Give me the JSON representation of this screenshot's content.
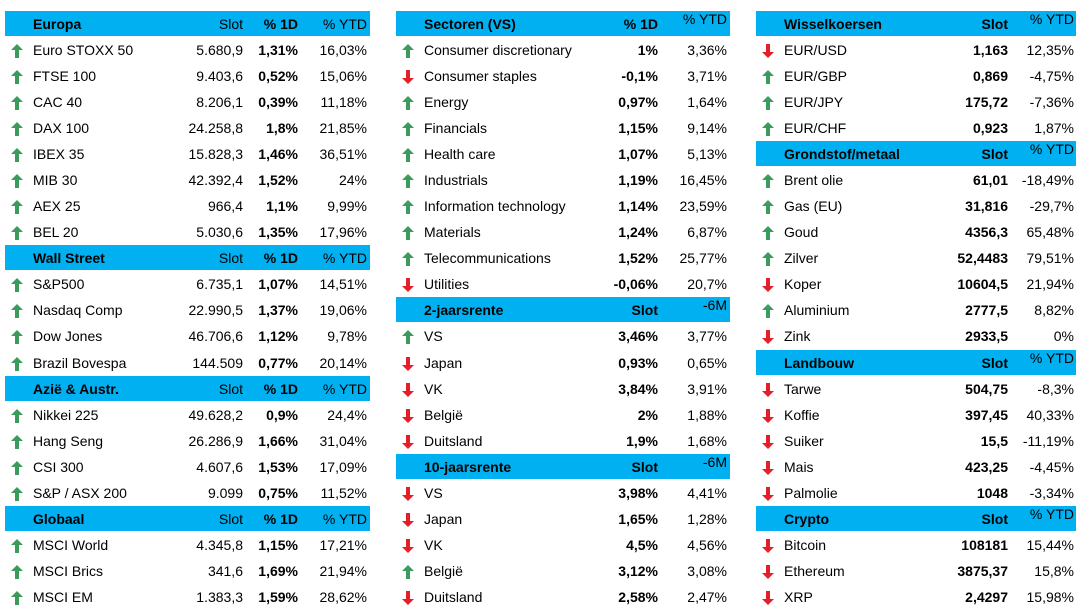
{
  "columns": [
    {
      "sections": [
        {
          "title": "Europa",
          "headers": [
            "Slot",
            "% 1D",
            "% YTD"
          ],
          "rows": [
            {
              "arrow": "up",
              "cells": [
                "Euro STOXX 50",
                "5.680,9",
                "1,31%",
                "16,03%"
              ]
            },
            {
              "arrow": "up",
              "cells": [
                "FTSE 100",
                "9.403,6",
                "0,52%",
                "15,06%"
              ]
            },
            {
              "arrow": "up",
              "cells": [
                "CAC 40",
                "8.206,1",
                "0,39%",
                "11,18%"
              ]
            },
            {
              "arrow": "up",
              "cells": [
                "DAX 100",
                "24.258,8",
                "1,8%",
                "21,85%"
              ]
            },
            {
              "arrow": "up",
              "cells": [
                "IBEX 35",
                "15.828,3",
                "1,46%",
                "36,51%"
              ]
            },
            {
              "arrow": "up",
              "cells": [
                "MIB 30",
                "42.392,4",
                "1,52%",
                "24%"
              ]
            },
            {
              "arrow": "up",
              "cells": [
                "AEX 25",
                "966,4",
                "1,1%",
                "9,99%"
              ]
            },
            {
              "arrow": "up",
              "cells": [
                "BEL 20",
                "5.030,6",
                "1,35%",
                "17,96%"
              ]
            }
          ]
        },
        {
          "title": "Wall Street",
          "headers": [
            "Slot",
            "% 1D",
            "% YTD"
          ],
          "rows": [
            {
              "arrow": "up",
              "cells": [
                "S&P500",
                "6.735,1",
                "1,07%",
                "14,51%"
              ]
            },
            {
              "arrow": "up",
              "cells": [
                "Nasdaq Comp",
                "22.990,5",
                "1,37%",
                "19,06%"
              ]
            },
            {
              "arrow": "up",
              "cells": [
                "Dow Jones",
                "46.706,6",
                "1,12%",
                "9,78%"
              ]
            },
            {
              "arrow": "up",
              "cells": [
                "Brazil Bovespa",
                "144.509",
                "0,77%",
                "20,14%"
              ]
            }
          ]
        },
        {
          "title": "Azië & Austr.",
          "headers": [
            "Slot",
            "% 1D",
            "% YTD"
          ],
          "rows": [
            {
              "arrow": "up",
              "cells": [
                "Nikkei 225",
                "49.628,2",
                "0,9%",
                "24,4%"
              ]
            },
            {
              "arrow": "up",
              "cells": [
                "Hang Seng",
                "26.286,9",
                "1,66%",
                "31,04%"
              ]
            },
            {
              "arrow": "up",
              "cells": [
                "CSI 300",
                "4.607,6",
                "1,53%",
                "17,09%"
              ]
            },
            {
              "arrow": "up",
              "cells": [
                "S&P / ASX 200",
                "9.099",
                "0,75%",
                "11,52%"
              ]
            }
          ]
        },
        {
          "title": "Globaal",
          "headers": [
            "Slot",
            "% 1D",
            "% YTD"
          ],
          "rows": [
            {
              "arrow": "up",
              "cells": [
                "MSCI World",
                "4.345,8",
                "1,15%",
                "17,21%"
              ]
            },
            {
              "arrow": "up",
              "cells": [
                "MSCI Brics",
                "341,6",
                "1,69%",
                "21,94%"
              ]
            },
            {
              "arrow": "up",
              "cells": [
                "MSCI EM",
                "1.383,3",
                "1,59%",
                "28,62%"
              ]
            }
          ]
        }
      ]
    },
    {
      "sections": [
        {
          "title": "Sectoren (VS)",
          "headers": [
            "% 1D",
            "% YTD"
          ],
          "rows": [
            {
              "arrow": "up",
              "cells": [
                "Consumer discretionary",
                "1%",
                "3,36%"
              ]
            },
            {
              "arrow": "down",
              "cells": [
                "Consumer staples",
                "-0,1%",
                "3,71%"
              ]
            },
            {
              "arrow": "up",
              "cells": [
                "Energy",
                "0,97%",
                "1,64%"
              ]
            },
            {
              "arrow": "up",
              "cells": [
                "Financials",
                "1,15%",
                "9,14%"
              ]
            },
            {
              "arrow": "up",
              "cells": [
                "Health care",
                "1,07%",
                "5,13%"
              ]
            },
            {
              "arrow": "up",
              "cells": [
                "Industrials",
                "1,19%",
                "16,45%"
              ]
            },
            {
              "arrow": "up",
              "cells": [
                "Information technology",
                "1,14%",
                "23,59%"
              ]
            },
            {
              "arrow": "up",
              "cells": [
                "Materials",
                "1,24%",
                "6,87%"
              ]
            },
            {
              "arrow": "up",
              "cells": [
                "Telecommunications",
                "1,52%",
                "25,77%"
              ]
            },
            {
              "arrow": "down",
              "cells": [
                "Utilities",
                "-0,06%",
                "20,7%"
              ]
            }
          ]
        },
        {
          "title": "2-jaarsrente",
          "headers": [
            "Slot",
            "-6M"
          ],
          "rows": [
            {
              "arrow": "up",
              "cells": [
                "VS",
                "3,46%",
                "3,77%"
              ]
            },
            {
              "arrow": "down",
              "cells": [
                "Japan",
                "0,93%",
                "0,65%"
              ]
            },
            {
              "arrow": "down",
              "cells": [
                "VK",
                "3,84%",
                "3,91%"
              ]
            },
            {
              "arrow": "down",
              "cells": [
                "België",
                "2%",
                "1,88%"
              ]
            },
            {
              "arrow": "down",
              "cells": [
                "Duitsland",
                "1,9%",
                "1,68%"
              ]
            }
          ]
        },
        {
          "title": "10-jaarsrente",
          "headers": [
            "Slot",
            "-6M"
          ],
          "rows": [
            {
              "arrow": "down",
              "cells": [
                "VS",
                "3,98%",
                "4,41%"
              ]
            },
            {
              "arrow": "down",
              "cells": [
                "Japan",
                "1,65%",
                "1,28%"
              ]
            },
            {
              "arrow": "down",
              "cells": [
                "VK",
                "4,5%",
                "4,56%"
              ]
            },
            {
              "arrow": "up",
              "cells": [
                "België",
                "3,12%",
                "3,08%"
              ]
            },
            {
              "arrow": "down",
              "cells": [
                "Duitsland",
                "2,58%",
                "2,47%"
              ]
            }
          ]
        }
      ]
    },
    {
      "sections": [
        {
          "title": "Wisselkoersen",
          "headers": [
            "Slot",
            "% YTD"
          ],
          "rows": [
            {
              "arrow": "down",
              "cells": [
                "EUR/USD",
                "1,163",
                "12,35%"
              ]
            },
            {
              "arrow": "up",
              "cells": [
                "EUR/GBP",
                "0,869",
                "-4,75%"
              ]
            },
            {
              "arrow": "up",
              "cells": [
                "EUR/JPY",
                "175,72",
                "-7,36%"
              ]
            },
            {
              "arrow": "up",
              "cells": [
                "EUR/CHF",
                "0,923",
                "1,87%"
              ]
            }
          ]
        },
        {
          "title": "Grondstof/metaal",
          "headers": [
            "Slot",
            "% YTD"
          ],
          "rows": [
            {
              "arrow": "up",
              "cells": [
                "Brent olie",
                "61,01",
                "-18,49%"
              ]
            },
            {
              "arrow": "up",
              "cells": [
                "Gas (EU)",
                "31,816",
                "-29,7%"
              ]
            },
            {
              "arrow": "up",
              "cells": [
                "Goud",
                "4356,3",
                "65,48%"
              ]
            },
            {
              "arrow": "up",
              "cells": [
                "Zilver",
                "52,4483",
                "79,51%"
              ]
            },
            {
              "arrow": "down",
              "cells": [
                "Koper",
                "10604,5",
                "21,94%"
              ]
            },
            {
              "arrow": "up",
              "cells": [
                "Aluminium",
                "2777,5",
                "8,82%"
              ]
            },
            {
              "arrow": "down",
              "cells": [
                "Zink",
                "2933,5",
                "0%"
              ]
            }
          ]
        },
        {
          "title": "Landbouw",
          "headers": [
            "Slot",
            "% YTD"
          ],
          "rows": [
            {
              "arrow": "down",
              "cells": [
                "Tarwe",
                "504,75",
                "-8,3%"
              ]
            },
            {
              "arrow": "down",
              "cells": [
                "Koffie",
                "397,45",
                "40,33%"
              ]
            },
            {
              "arrow": "down",
              "cells": [
                "Suiker",
                "15,5",
                "-11,19%"
              ]
            },
            {
              "arrow": "down",
              "cells": [
                "Mais",
                "423,25",
                "-4,45%"
              ]
            },
            {
              "arrow": "down",
              "cells": [
                "Palmolie",
                "1048",
                "-3,34%"
              ]
            }
          ]
        },
        {
          "title": "Crypto",
          "headers": [
            "Slot",
            "% YTD"
          ],
          "rows": [
            {
              "arrow": "down",
              "cells": [
                "Bitcoin",
                "108181",
                "15,44%"
              ]
            },
            {
              "arrow": "down",
              "cells": [
                "Ethereum",
                "3875,37",
                "15,8%"
              ]
            },
            {
              "arrow": "down",
              "cells": [
                "XRP",
                "2,4297",
                "15,98%"
              ]
            }
          ]
        }
      ]
    }
  ]
}
